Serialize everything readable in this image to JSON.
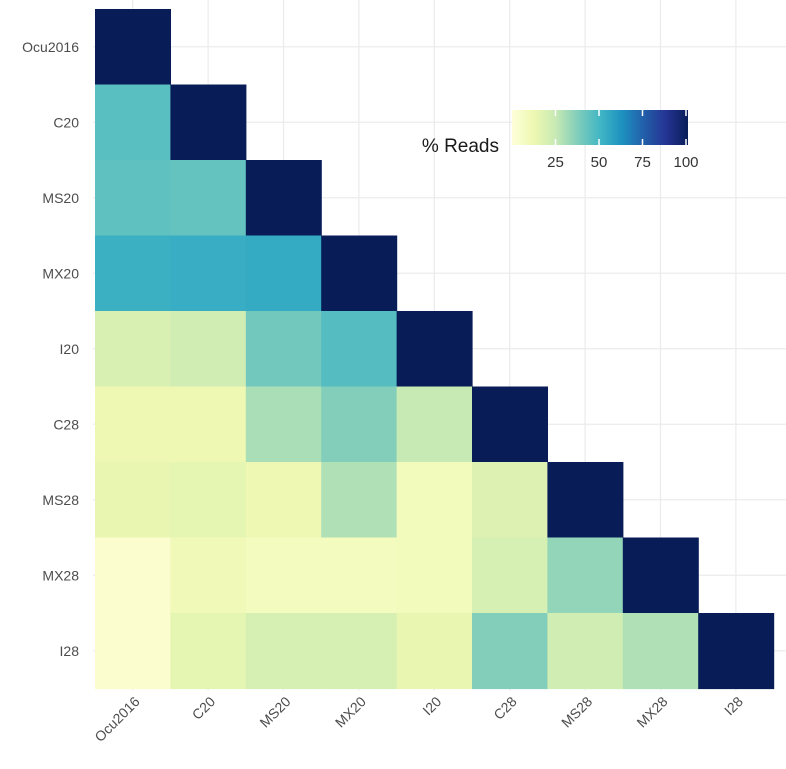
{
  "chart_data": {
    "type": "heatmap",
    "title": "",
    "xlabel": "",
    "ylabel": "",
    "x_categories": [
      "Ocu2016",
      "C20",
      "MS20",
      "MX20",
      "I20",
      "C28",
      "MS28",
      "MX28",
      "I28"
    ],
    "y_categories": [
      "Ocu2016",
      "C20",
      "MS20",
      "MX20",
      "I20",
      "C28",
      "MS28",
      "MX28",
      "I28"
    ],
    "values": [
      [
        100,
        null,
        null,
        null,
        null,
        null,
        null,
        null,
        null
      ],
      [
        45,
        100,
        null,
        null,
        null,
        null,
        null,
        null,
        null
      ],
      [
        44,
        43,
        100,
        null,
        null,
        null,
        null,
        null,
        null
      ],
      [
        52,
        53,
        54,
        100,
        null,
        null,
        null,
        null,
        null
      ],
      [
        19,
        22,
        40,
        46,
        100,
        null,
        null,
        null,
        null
      ],
      [
        12,
        12,
        30,
        37,
        25,
        100,
        null,
        null,
        null
      ],
      [
        14,
        15,
        12,
        29,
        9,
        18,
        100,
        null,
        null
      ],
      [
        3,
        10,
        8,
        8,
        9,
        20,
        34,
        100,
        null
      ],
      [
        3,
        15,
        20,
        20,
        14,
        37,
        22,
        29,
        100
      ]
    ],
    "color_scale": {
      "palette": "YlGnBu",
      "domain": [
        0,
        100
      ],
      "stops": [
        "#ffffd9",
        "#edf8b1",
        "#c7e9b4",
        "#7fcdbb",
        "#41b6c4",
        "#1d91c0",
        "#225ea8",
        "#253494",
        "#081d58"
      ]
    },
    "legend": {
      "title": "% Reads",
      "ticks": [
        25,
        50,
        75,
        100
      ],
      "position": "top-right"
    },
    "grid": true
  }
}
